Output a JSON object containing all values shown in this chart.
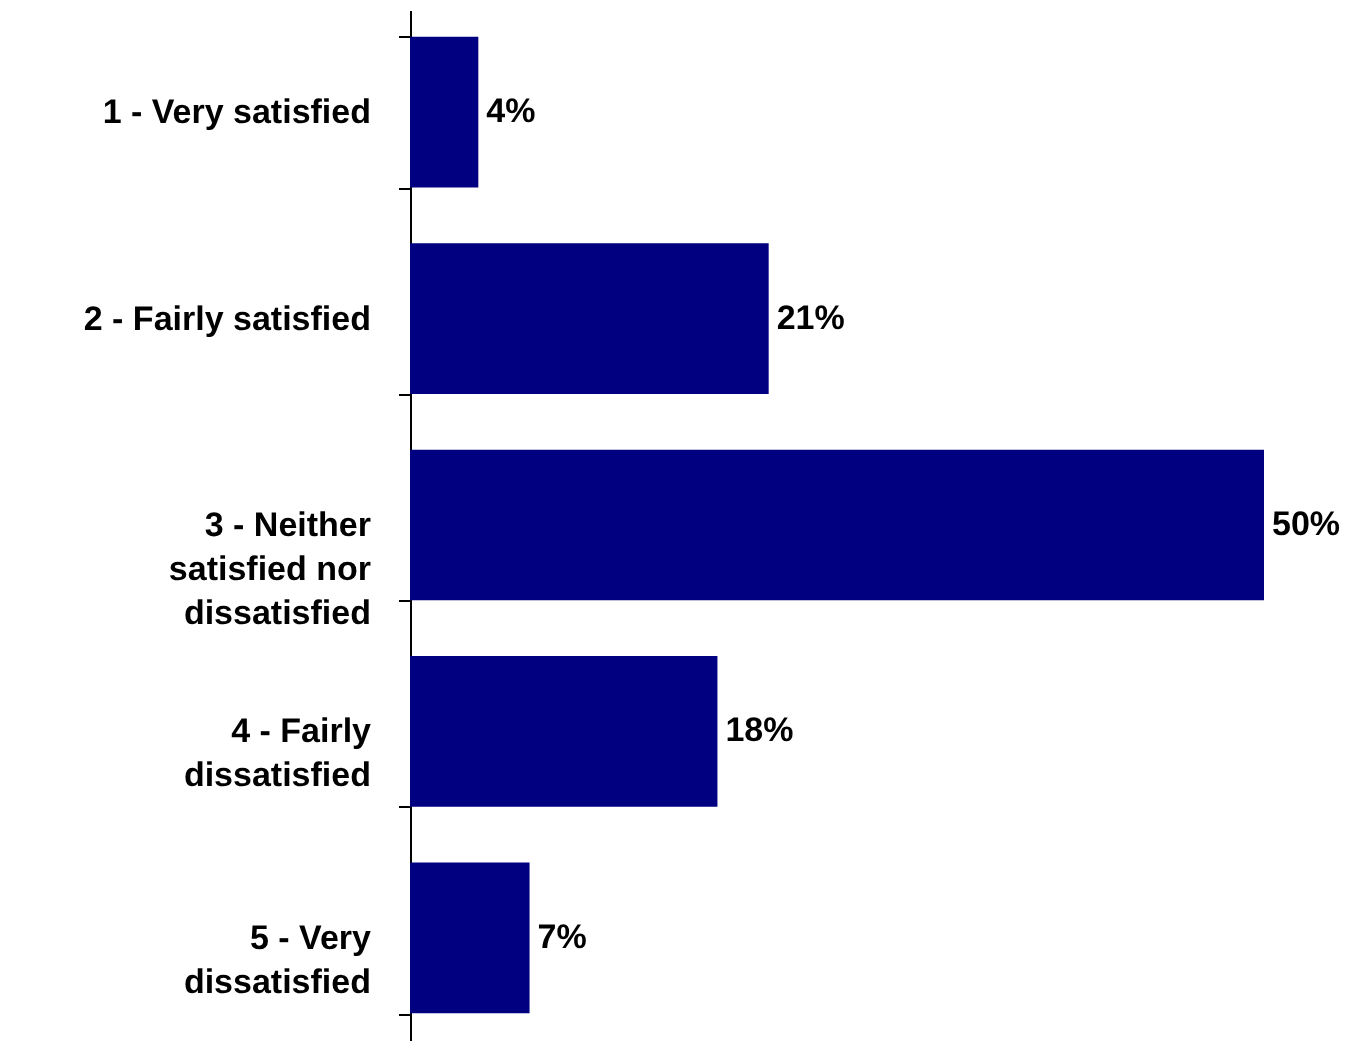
{
  "chart_data": {
    "type": "bar",
    "orientation": "horizontal",
    "categories": [
      "1 - Very satisfied",
      "2 - Fairly satisfied",
      "3 - Neither satisfied nor dissatisfied",
      "4 - Fairly dissatisfied",
      "5 - Very dissatisfied"
    ],
    "values": [
      4,
      21,
      50,
      18,
      7
    ],
    "value_labels": [
      "4%",
      "21%",
      "50%",
      "18%",
      "7%"
    ],
    "color": "#000080"
  }
}
